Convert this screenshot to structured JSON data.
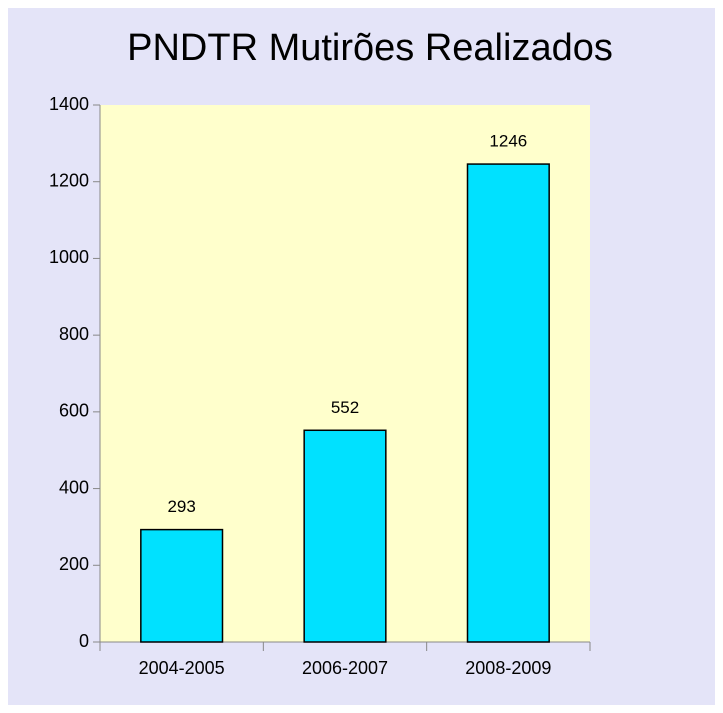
{
  "chart_data": {
    "type": "bar",
    "title": "PNDTR Mutirões Realizados",
    "categories": [
      "2004-2005",
      "2006-2007",
      "2008-2009"
    ],
    "values": [
      293,
      552,
      1246
    ],
    "color": "#00e1ff",
    "ylim": [
      0,
      1400
    ],
    "yticks": [
      0,
      200,
      400,
      600,
      800,
      1000,
      1200,
      1400
    ]
  }
}
